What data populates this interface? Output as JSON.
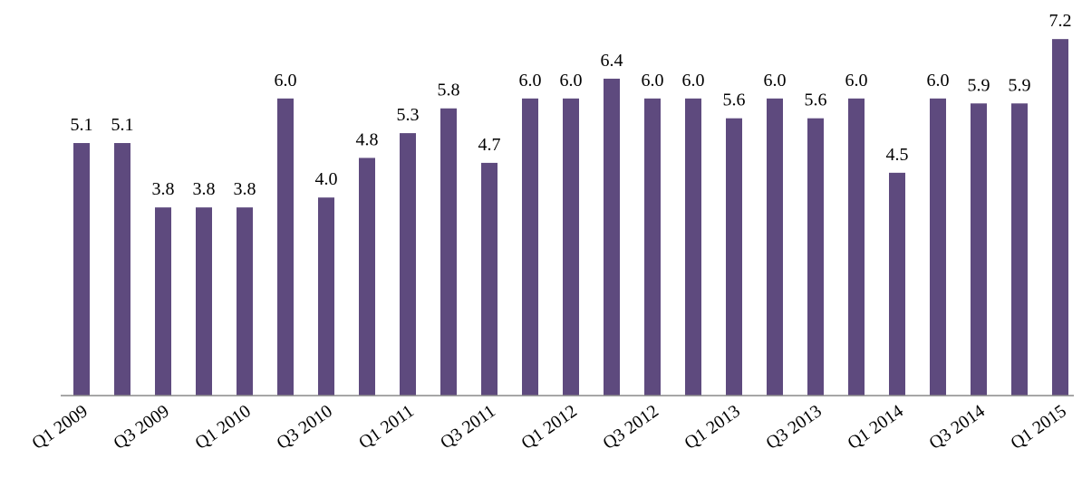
{
  "chart_data": {
    "type": "bar",
    "categories": [
      "Q1 2009",
      null,
      "Q3 2009",
      null,
      "Q1 2010",
      null,
      "Q3 2010",
      null,
      "Q1 2011",
      null,
      "Q3 2011",
      null,
      "Q1 2012",
      null,
      "Q3 2012",
      null,
      "Q1 2013",
      null,
      "Q3 2013",
      null,
      "Q1 2014",
      null,
      "Q3 2014",
      null,
      "Q1 2015"
    ],
    "values": [
      5.1,
      5.1,
      3.8,
      3.8,
      3.8,
      6.0,
      4.0,
      4.8,
      5.3,
      5.8,
      4.7,
      6.0,
      6.0,
      6.4,
      6.0,
      6.0,
      5.6,
      6.0,
      5.6,
      6.0,
      4.5,
      6.0,
      5.9,
      5.9,
      7.2
    ],
    "value_labels": [
      "5.1",
      "5.1",
      "3.8",
      "3.8",
      "3.8",
      "6.0",
      "4.0",
      "4.8",
      "5.3",
      "5.8",
      "4.7",
      "6.0",
      "6.0",
      "6.4",
      "6.0",
      "6.0",
      "5.6",
      "6.0",
      "5.6",
      "6.0",
      "4.5",
      "6.0",
      "5.9",
      "5.9",
      "7.2"
    ],
    "color": "#5e4a7e"
  }
}
